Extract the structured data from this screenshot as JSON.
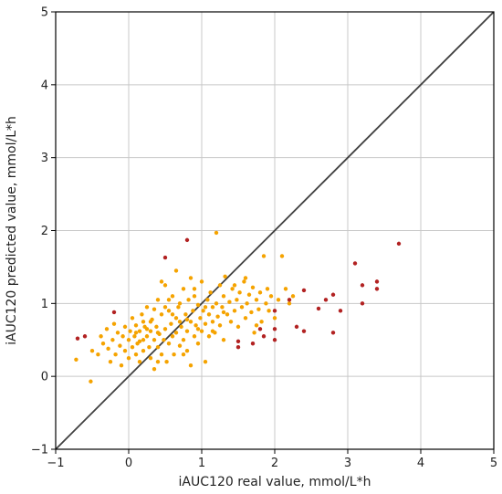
{
  "chart_data": {
    "type": "scatter",
    "title": "",
    "xlabel": "iAUC120 real value, mmol/L*h",
    "ylabel": "iAUC120 predicted value, mmol/L*h",
    "xlim": [
      -1,
      5
    ],
    "ylim": [
      -1,
      5
    ],
    "xticks": [
      "−1",
      "0",
      "1",
      "2",
      "3",
      "4",
      "5"
    ],
    "yticks": [
      "−1",
      "0",
      "1",
      "2",
      "3",
      "4",
      "5"
    ],
    "grid": true,
    "reference_line": {
      "from": [
        -1,
        -1
      ],
      "to": [
        5,
        5
      ],
      "color": "#404040"
    },
    "series": [
      {
        "color": "#f5a300",
        "points": [
          [
            -0.72,
            0.23
          ],
          [
            -0.52,
            -0.07
          ],
          [
            -0.5,
            0.35
          ],
          [
            -0.42,
            0.3
          ],
          [
            -0.38,
            0.55
          ],
          [
            -0.35,
            0.45
          ],
          [
            -0.3,
            0.65
          ],
          [
            -0.28,
            0.38
          ],
          [
            -0.25,
            0.2
          ],
          [
            -0.22,
            0.5
          ],
          [
            -0.2,
            0.72
          ],
          [
            -0.18,
            0.3
          ],
          [
            -0.15,
            0.6
          ],
          [
            -0.12,
            0.42
          ],
          [
            -0.1,
            0.15
          ],
          [
            -0.08,
            0.55
          ],
          [
            -0.05,
            0.35
          ],
          [
            -0.05,
            0.68
          ],
          [
            0.0,
            0.5
          ],
          [
            0.0,
            0.25
          ],
          [
            0.02,
            0.62
          ],
          [
            0.05,
            0.4
          ],
          [
            0.05,
            0.8
          ],
          [
            0.08,
            0.55
          ],
          [
            0.1,
            0.3
          ],
          [
            0.1,
            0.7
          ],
          [
            0.12,
            0.45
          ],
          [
            0.15,
            0.62
          ],
          [
            0.15,
            0.2
          ],
          [
            0.18,
            0.85
          ],
          [
            0.2,
            0.5
          ],
          [
            0.2,
            0.35
          ],
          [
            0.22,
            0.68
          ],
          [
            0.25,
            0.55
          ],
          [
            0.25,
            0.95
          ],
          [
            0.28,
            0.4
          ],
          [
            0.3,
            0.62
          ],
          [
            0.3,
            0.25
          ],
          [
            0.32,
            0.78
          ],
          [
            0.35,
            0.5
          ],
          [
            0.35,
            0.1
          ],
          [
            0.38,
            0.68
          ],
          [
            0.4,
            0.4
          ],
          [
            0.4,
            1.05
          ],
          [
            0.42,
            0.58
          ],
          [
            0.45,
            0.3
          ],
          [
            0.45,
            0.85
          ],
          [
            0.48,
            0.5
          ],
          [
            0.5,
            1.25
          ],
          [
            0.5,
            0.65
          ],
          [
            0.52,
            0.2
          ],
          [
            0.55,
            0.9
          ],
          [
            0.55,
            0.45
          ],
          [
            0.58,
            0.72
          ],
          [
            0.6,
            0.55
          ],
          [
            0.6,
            1.1
          ],
          [
            0.62,
            0.3
          ],
          [
            0.65,
            0.8
          ],
          [
            0.65,
            0.6
          ],
          [
            0.68,
            0.95
          ],
          [
            0.7,
            0.42
          ],
          [
            0.7,
            1.0
          ],
          [
            0.72,
            0.68
          ],
          [
            0.75,
            0.5
          ],
          [
            0.75,
            1.2
          ],
          [
            0.78,
            0.85
          ],
          [
            0.8,
            0.35
          ],
          [
            0.8,
            0.62
          ],
          [
            0.82,
            1.05
          ],
          [
            0.85,
            0.75
          ],
          [
            0.85,
            0.15
          ],
          [
            0.88,
            0.9
          ],
          [
            0.9,
            0.55
          ],
          [
            0.9,
            1.1
          ],
          [
            0.92,
            0.7
          ],
          [
            0.95,
            0.98
          ],
          [
            0.95,
            0.45
          ],
          [
            0.98,
            0.8
          ],
          [
            1.0,
            0.62
          ],
          [
            1.0,
            1.3
          ],
          [
            1.02,
            0.9
          ],
          [
            1.05,
            0.72
          ],
          [
            1.05,
            0.2
          ],
          [
            1.08,
            1.05
          ],
          [
            1.1,
            0.85
          ],
          [
            1.1,
            0.55
          ],
          [
            1.12,
            1.15
          ],
          [
            1.15,
            0.75
          ],
          [
            1.15,
            0.95
          ],
          [
            1.18,
            0.6
          ],
          [
            1.2,
            1.97
          ],
          [
            1.2,
            1.0
          ],
          [
            1.22,
            0.82
          ],
          [
            1.25,
            1.25
          ],
          [
            1.25,
            0.7
          ],
          [
            1.28,
            0.95
          ],
          [
            1.3,
            1.1
          ],
          [
            1.3,
            0.5
          ],
          [
            1.32,
            1.37
          ],
          [
            1.35,
            0.85
          ],
          [
            1.38,
            1.02
          ],
          [
            1.4,
            0.75
          ],
          [
            1.42,
            1.2
          ],
          [
            1.45,
            0.9
          ],
          [
            1.48,
            1.05
          ],
          [
            1.5,
            0.68
          ],
          [
            1.52,
            1.15
          ],
          [
            1.55,
            0.95
          ],
          [
            1.58,
            1.3
          ],
          [
            1.6,
            0.8
          ],
          [
            1.62,
            1.0
          ],
          [
            1.65,
            1.12
          ],
          [
            1.68,
            0.88
          ],
          [
            1.7,
            1.22
          ],
          [
            1.72,
            0.6
          ],
          [
            1.75,
            1.05
          ],
          [
            1.78,
            0.92
          ],
          [
            1.8,
            1.15
          ],
          [
            1.82,
            0.75
          ],
          [
            1.85,
            1.65
          ],
          [
            1.88,
            1.0
          ],
          [
            1.9,
            1.2
          ],
          [
            1.92,
            0.9
          ],
          [
            1.95,
            1.1
          ],
          [
            2.0,
            0.8
          ],
          [
            2.05,
            1.05
          ],
          [
            2.1,
            1.65
          ],
          [
            2.15,
            1.2
          ],
          [
            2.2,
            1.0
          ],
          [
            2.25,
            1.1
          ],
          [
            0.3,
            0.75
          ],
          [
            0.5,
            0.95
          ],
          [
            0.6,
            0.85
          ],
          [
            0.7,
            0.75
          ],
          [
            0.4,
            0.6
          ],
          [
            0.2,
            0.75
          ],
          [
            0.1,
            0.6
          ],
          [
            0.15,
            0.48
          ],
          [
            0.8,
            0.78
          ],
          [
            0.95,
            0.65
          ],
          [
            1.05,
            0.95
          ],
          [
            0.55,
            1.05
          ],
          [
            0.65,
            1.45
          ],
          [
            0.85,
            1.35
          ],
          [
            0.45,
            1.3
          ],
          [
            0.35,
            0.92
          ],
          [
            0.25,
            0.65
          ],
          [
            0.9,
            1.2
          ],
          [
            1.15,
            0.62
          ],
          [
            1.3,
            0.88
          ],
          [
            1.45,
            1.25
          ],
          [
            1.6,
            1.35
          ],
          [
            1.75,
            0.7
          ],
          [
            0.75,
            0.3
          ],
          [
            0.4,
            0.2
          ]
        ]
      },
      {
        "color": "#b22222",
        "points": [
          [
            -0.7,
            0.52
          ],
          [
            -0.6,
            0.55
          ],
          [
            -0.2,
            0.88
          ],
          [
            0.5,
            1.63
          ],
          [
            0.8,
            1.87
          ],
          [
            1.5,
            0.48
          ],
          [
            1.5,
            0.4
          ],
          [
            1.7,
            0.45
          ],
          [
            1.8,
            0.65
          ],
          [
            1.85,
            0.55
          ],
          [
            2.0,
            0.5
          ],
          [
            2.0,
            0.65
          ],
          [
            2.0,
            0.9
          ],
          [
            2.2,
            1.05
          ],
          [
            2.3,
            0.68
          ],
          [
            2.4,
            1.18
          ],
          [
            2.4,
            0.62
          ],
          [
            2.6,
            0.93
          ],
          [
            2.7,
            1.05
          ],
          [
            2.8,
            1.12
          ],
          [
            2.8,
            0.6
          ],
          [
            2.9,
            0.9
          ],
          [
            3.1,
            1.55
          ],
          [
            3.2,
            1.25
          ],
          [
            3.2,
            1.0
          ],
          [
            3.4,
            1.3
          ],
          [
            3.4,
            1.2
          ],
          [
            3.7,
            1.82
          ]
        ]
      }
    ]
  }
}
